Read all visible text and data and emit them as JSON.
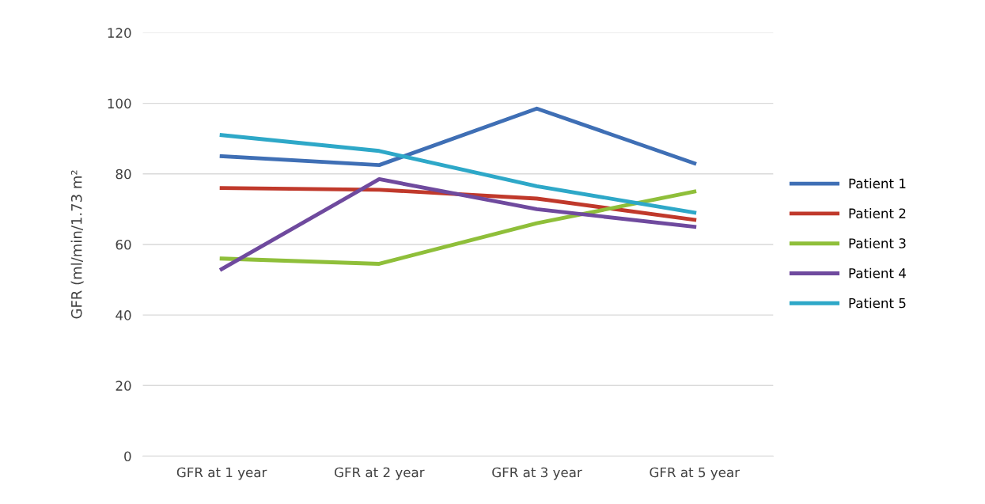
{
  "chart_data": {
    "type": "line",
    "ylabel": "GFR (ml/min/1.73 m²",
    "categories": [
      "GFR at 1 year",
      "GFR at 2 year",
      "GFR at 3 year",
      "GFR at 5 year"
    ],
    "series": [
      {
        "name": "Patient 1",
        "color": "#3f6fb5",
        "values": [
          85,
          82.5,
          98.5,
          83
        ]
      },
      {
        "name": "Patient 2",
        "color": "#c0392b",
        "values": [
          76,
          75.5,
          73,
          67
        ]
      },
      {
        "name": "Patient 3",
        "color": "#8fbf3a",
        "values": [
          56,
          54.5,
          66,
          75
        ]
      },
      {
        "name": "Patient 4",
        "color": "#6f4a9e",
        "values": [
          53,
          78.5,
          70,
          65
        ]
      },
      {
        "name": "Patient 5",
        "color": "#2ea8c8",
        "values": [
          91,
          86.5,
          76.5,
          69
        ]
      }
    ],
    "ylim": [
      0,
      120
    ],
    "yticks": [
      0,
      20,
      40,
      60,
      80,
      100,
      120
    ],
    "grid": "y",
    "legend": "right",
    "marker": "none",
    "line_style": "solid"
  }
}
